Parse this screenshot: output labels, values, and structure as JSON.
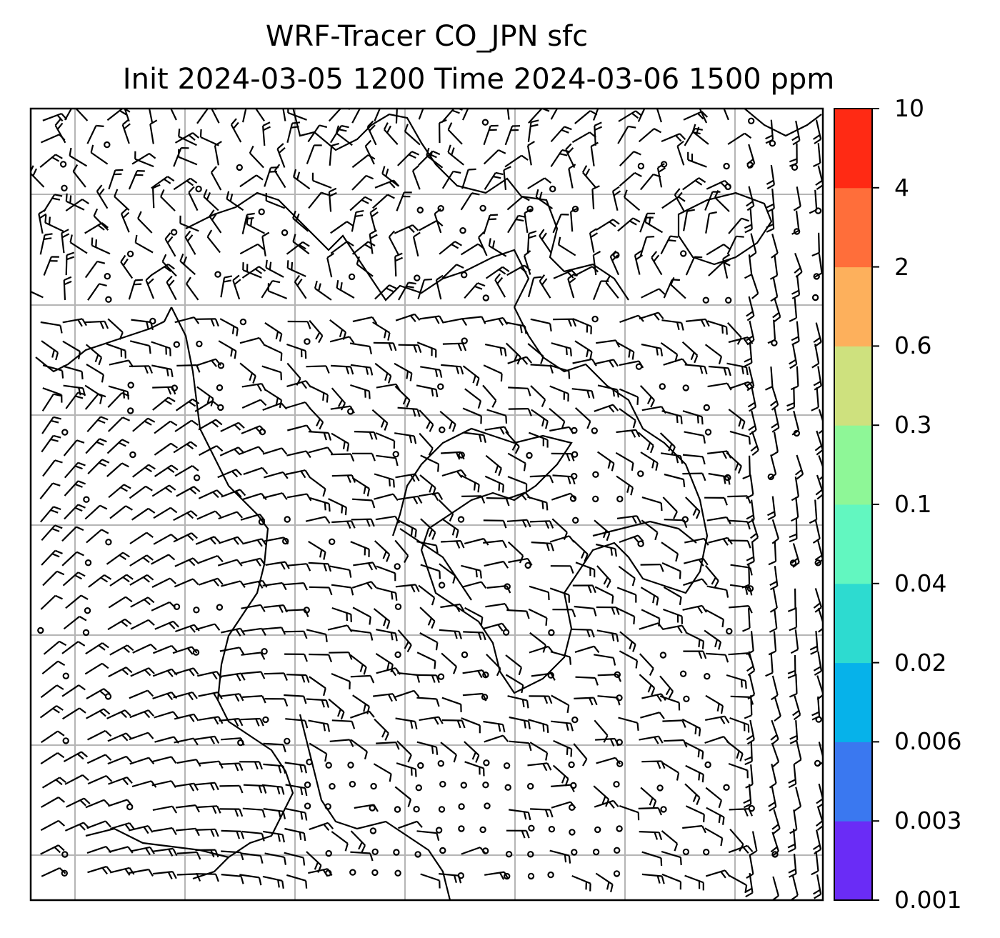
{
  "title": {
    "line1": "WRF-Tracer CO_JPN sfc",
    "line2": "Init 2024-03-05 1200 Time 2024-03-06 1500 ppm"
  },
  "colorbar": {
    "levels": [
      "0.001",
      "0.003",
      "0.006",
      "0.02",
      "0.04",
      "0.1",
      "0.3",
      "0.6",
      "2",
      "4",
      "10"
    ],
    "colors": [
      "#6a2cf6",
      "#3a78f0",
      "#06b2ea",
      "#2ddbd0",
      "#62f7c0",
      "#8ef797",
      "#cee17e",
      "#fdb05c",
      "#ff6e3a",
      "#ff2a14"
    ]
  },
  "map": {
    "gridlines": true,
    "wind_barbs": true,
    "coastlines": true,
    "grid_color": "#b5b5b5",
    "line_color": "#000000"
  }
}
